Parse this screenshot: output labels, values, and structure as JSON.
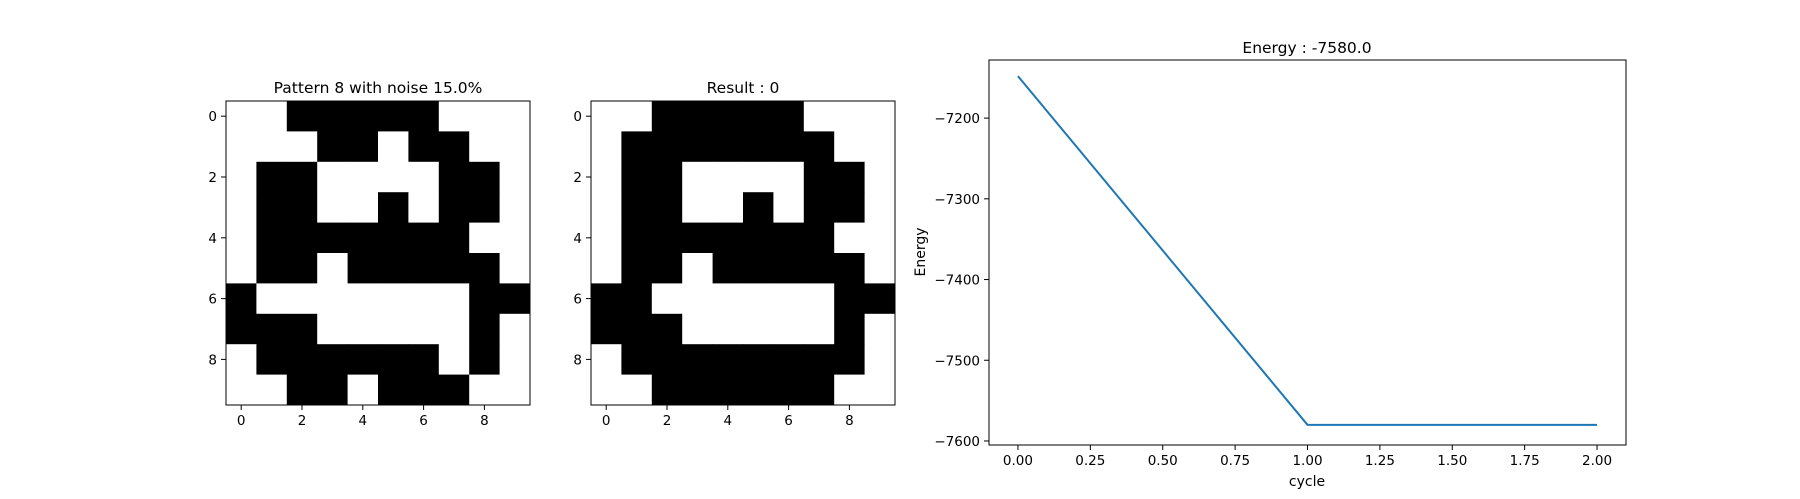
{
  "chart_data": [
    {
      "type": "heatmap",
      "title": "Pattern 8 with noise 15.0%",
      "xticks": [
        "0",
        "2",
        "4",
        "6",
        "8"
      ],
      "yticks": [
        "0",
        "2",
        "4",
        "6",
        "8"
      ],
      "colormap": {
        "0": "#ffffff",
        "1": "#000000"
      },
      "grid": [
        [
          0,
          0,
          1,
          1,
          1,
          1,
          1,
          0,
          0,
          0
        ],
        [
          0,
          0,
          0,
          1,
          1,
          0,
          1,
          1,
          0,
          0
        ],
        [
          0,
          1,
          1,
          0,
          0,
          0,
          0,
          1,
          1,
          0
        ],
        [
          0,
          1,
          1,
          0,
          0,
          1,
          0,
          1,
          1,
          0
        ],
        [
          0,
          1,
          1,
          1,
          1,
          1,
          1,
          1,
          0,
          0
        ],
        [
          0,
          1,
          1,
          0,
          1,
          1,
          1,
          1,
          1,
          0
        ],
        [
          1,
          0,
          0,
          0,
          0,
          0,
          0,
          0,
          1,
          1
        ],
        [
          1,
          1,
          1,
          0,
          0,
          0,
          0,
          0,
          1,
          0
        ],
        [
          0,
          1,
          1,
          1,
          1,
          1,
          1,
          0,
          1,
          0
        ],
        [
          0,
          0,
          1,
          1,
          0,
          1,
          1,
          1,
          0,
          0
        ]
      ]
    },
    {
      "type": "heatmap",
      "title": "Result : 0",
      "xticks": [
        "0",
        "2",
        "4",
        "6",
        "8"
      ],
      "yticks": [
        "0",
        "2",
        "4",
        "6",
        "8"
      ],
      "colormap": {
        "0": "#ffffff",
        "1": "#000000"
      },
      "grid": [
        [
          0,
          0,
          1,
          1,
          1,
          1,
          1,
          0,
          0,
          0
        ],
        [
          0,
          1,
          1,
          1,
          1,
          1,
          1,
          1,
          0,
          0
        ],
        [
          0,
          1,
          1,
          0,
          0,
          0,
          0,
          1,
          1,
          0
        ],
        [
          0,
          1,
          1,
          0,
          0,
          1,
          0,
          1,
          1,
          0
        ],
        [
          0,
          1,
          1,
          1,
          1,
          1,
          1,
          1,
          0,
          0
        ],
        [
          0,
          1,
          1,
          0,
          1,
          1,
          1,
          1,
          1,
          0
        ],
        [
          1,
          1,
          0,
          0,
          0,
          0,
          0,
          0,
          1,
          1
        ],
        [
          1,
          1,
          1,
          0,
          0,
          0,
          0,
          0,
          1,
          0
        ],
        [
          0,
          1,
          1,
          1,
          1,
          1,
          1,
          1,
          1,
          0
        ],
        [
          0,
          0,
          1,
          1,
          1,
          1,
          1,
          1,
          0,
          0
        ]
      ]
    },
    {
      "type": "line",
      "title": "Energy : -7580.0",
      "xlabel": "cycle",
      "ylabel": "Energy",
      "xlim": [
        -0.1,
        2.1
      ],
      "ylim": [
        -7605,
        -7128
      ],
      "xticks": [
        0.0,
        0.25,
        0.5,
        0.75,
        1.0,
        1.25,
        1.5,
        1.75,
        2.0
      ],
      "xtick_labels": [
        "0.00",
        "0.25",
        "0.50",
        "0.75",
        "1.00",
        "1.25",
        "1.50",
        "1.75",
        "2.00"
      ],
      "yticks": [
        -7600,
        -7500,
        -7400,
        -7300,
        -7200
      ],
      "ytick_labels": [
        "−7600",
        "−7500",
        "−7400",
        "−7300",
        "−7200"
      ],
      "series": [
        {
          "name": "Energy",
          "color": "#1f77b4",
          "x": [
            0,
            1,
            2
          ],
          "y": [
            -7148,
            -7580,
            -7580
          ]
        }
      ],
      "grid": false
    }
  ]
}
